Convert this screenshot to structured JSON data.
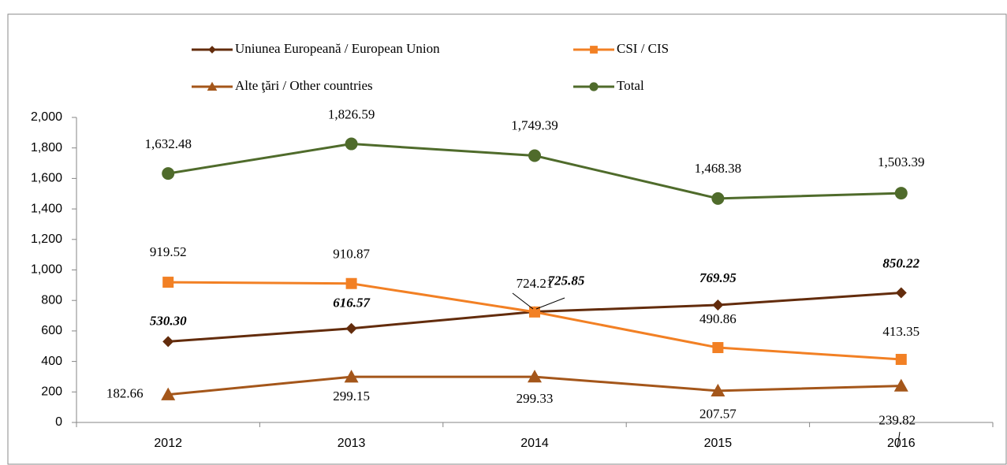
{
  "chart_data": {
    "type": "line",
    "categories": [
      "2012",
      "2013",
      "2014",
      "2015",
      "2016"
    ],
    "ylim": [
      0,
      2000
    ],
    "yticks": [
      0,
      200,
      400,
      600,
      800,
      {
        "value": 1000,
        "label": "1,000"
      },
      {
        "value": 1200,
        "label": "1,200"
      },
      {
        "value": 1400,
        "label": "1,400"
      },
      {
        "value": 1600,
        "label": "1,600"
      },
      {
        "value": 1800,
        "label": "1,800"
      },
      {
        "value": 2000,
        "label": "2,000"
      }
    ],
    "series": [
      {
        "name": "Uniunea Europeană / European Union",
        "color": "#632c0c",
        "marker": "diamond",
        "label_color": "#9c4f14",
        "values": [
          530.3,
          616.57,
          725.85,
          769.95,
          850.22
        ],
        "value_labels": [
          "530.30",
          "616.57",
          "725.85",
          "769.95",
          "850.22"
        ]
      },
      {
        "name": "CSI / CIS",
        "color": "#f28024",
        "marker": "square",
        "label_color": "#e9771b",
        "values": [
          919.52,
          910.87,
          724.21,
          490.86,
          413.35
        ],
        "value_labels": [
          "919.52",
          "910.87",
          "724.21",
          "490.86",
          "413.35"
        ]
      },
      {
        "name": "Alte ţări / Other countries",
        "color": "#a4561a",
        "marker": "triangle",
        "label_color": "#000000",
        "values": [
          182.66,
          299.15,
          299.33,
          207.57,
          239.82
        ],
        "value_labels": [
          "182.66",
          "299.15",
          "299.33",
          "207.57",
          "239.82"
        ]
      },
      {
        "name": "Total",
        "color": "#4f6b2b",
        "marker": "circle",
        "label_color": "#000000",
        "values": [
          1632.48,
          1826.59,
          1749.39,
          1468.38,
          1503.39
        ],
        "value_labels": [
          "1,632.48",
          "1,826.59",
          "1,749.39",
          "1,468.38",
          "1,503.39"
        ]
      }
    ]
  }
}
